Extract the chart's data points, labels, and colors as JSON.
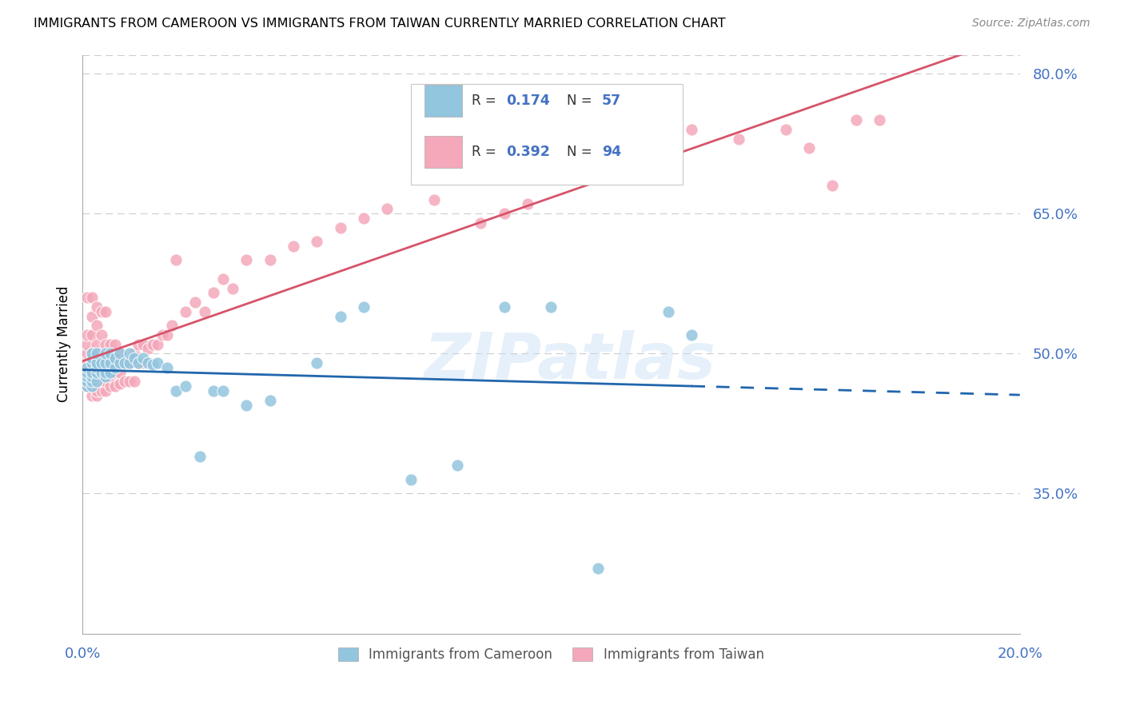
{
  "title": "IMMIGRANTS FROM CAMEROON VS IMMIGRANTS FROM TAIWAN CURRENTLY MARRIED CORRELATION CHART",
  "source": "Source: ZipAtlas.com",
  "ylabel": "Currently Married",
  "xlim": [
    0.0,
    0.2
  ],
  "ylim": [
    0.2,
    0.82
  ],
  "ytick_vals": [
    0.35,
    0.5,
    0.65,
    0.8
  ],
  "ytick_labels": [
    "35.0%",
    "50.0%",
    "65.0%",
    "80.0%"
  ],
  "xtick_vals": [
    0.0,
    0.2
  ],
  "xtick_labels": [
    "0.0%",
    "20.0%"
  ],
  "legend_blue_R": "0.174",
  "legend_blue_N": "57",
  "legend_pink_R": "0.392",
  "legend_pink_N": "94",
  "blue_scatter_color": "#92C5DE",
  "pink_scatter_color": "#F4A8BA",
  "blue_line_color": "#2166AC",
  "pink_line_color": "#D6546A",
  "axis_color": "#4472C4",
  "watermark": "ZIPatlas",
  "cameroon_x": [
    0.001,
    0.001,
    0.001,
    0.001,
    0.001,
    0.002,
    0.002,
    0.002,
    0.002,
    0.002,
    0.002,
    0.002,
    0.003,
    0.003,
    0.003,
    0.003,
    0.003,
    0.004,
    0.004,
    0.005,
    0.005,
    0.005,
    0.005,
    0.006,
    0.006,
    0.006,
    0.007,
    0.007,
    0.008,
    0.008,
    0.009,
    0.01,
    0.01,
    0.011,
    0.012,
    0.013,
    0.014,
    0.015,
    0.016,
    0.018,
    0.02,
    0.022,
    0.025,
    0.028,
    0.03,
    0.035,
    0.04,
    0.05,
    0.055,
    0.06,
    0.07,
    0.08,
    0.09,
    0.1,
    0.11,
    0.125,
    0.13
  ],
  "cameroon_y": [
    0.465,
    0.47,
    0.475,
    0.48,
    0.485,
    0.465,
    0.47,
    0.475,
    0.48,
    0.49,
    0.495,
    0.5,
    0.47,
    0.48,
    0.485,
    0.49,
    0.5,
    0.48,
    0.49,
    0.475,
    0.48,
    0.49,
    0.5,
    0.48,
    0.49,
    0.5,
    0.485,
    0.495,
    0.49,
    0.5,
    0.49,
    0.49,
    0.5,
    0.495,
    0.49,
    0.495,
    0.49,
    0.488,
    0.49,
    0.485,
    0.46,
    0.465,
    0.39,
    0.46,
    0.46,
    0.445,
    0.45,
    0.49,
    0.54,
    0.55,
    0.365,
    0.38,
    0.55,
    0.55,
    0.27,
    0.545,
    0.52
  ],
  "taiwan_x": [
    0.001,
    0.001,
    0.001,
    0.001,
    0.001,
    0.001,
    0.001,
    0.001,
    0.002,
    0.002,
    0.002,
    0.002,
    0.002,
    0.002,
    0.002,
    0.002,
    0.002,
    0.003,
    0.003,
    0.003,
    0.003,
    0.003,
    0.003,
    0.003,
    0.003,
    0.004,
    0.004,
    0.004,
    0.004,
    0.004,
    0.004,
    0.004,
    0.005,
    0.005,
    0.005,
    0.005,
    0.005,
    0.005,
    0.006,
    0.006,
    0.006,
    0.006,
    0.007,
    0.007,
    0.007,
    0.007,
    0.008,
    0.008,
    0.008,
    0.009,
    0.009,
    0.01,
    0.01,
    0.011,
    0.011,
    0.012,
    0.012,
    0.013,
    0.013,
    0.014,
    0.015,
    0.016,
    0.017,
    0.018,
    0.019,
    0.02,
    0.022,
    0.024,
    0.026,
    0.028,
    0.03,
    0.032,
    0.035,
    0.04,
    0.045,
    0.05,
    0.055,
    0.06,
    0.065,
    0.075,
    0.08,
    0.085,
    0.09,
    0.095,
    0.1,
    0.11,
    0.12,
    0.13,
    0.14,
    0.15,
    0.155,
    0.16,
    0.165,
    0.17
  ],
  "taiwan_y": [
    0.465,
    0.47,
    0.48,
    0.49,
    0.5,
    0.51,
    0.52,
    0.56,
    0.455,
    0.465,
    0.475,
    0.48,
    0.49,
    0.5,
    0.52,
    0.54,
    0.56,
    0.455,
    0.46,
    0.47,
    0.48,
    0.49,
    0.51,
    0.53,
    0.55,
    0.46,
    0.47,
    0.475,
    0.485,
    0.5,
    0.52,
    0.545,
    0.46,
    0.47,
    0.48,
    0.49,
    0.51,
    0.545,
    0.465,
    0.475,
    0.49,
    0.51,
    0.465,
    0.48,
    0.495,
    0.51,
    0.468,
    0.48,
    0.5,
    0.47,
    0.49,
    0.47,
    0.49,
    0.47,
    0.5,
    0.49,
    0.51,
    0.49,
    0.51,
    0.505,
    0.51,
    0.51,
    0.52,
    0.52,
    0.53,
    0.6,
    0.545,
    0.555,
    0.545,
    0.565,
    0.58,
    0.57,
    0.6,
    0.6,
    0.615,
    0.62,
    0.635,
    0.645,
    0.655,
    0.665,
    0.7,
    0.64,
    0.65,
    0.66,
    0.7,
    0.715,
    0.72,
    0.74,
    0.73,
    0.74,
    0.72,
    0.68,
    0.75,
    0.75
  ]
}
